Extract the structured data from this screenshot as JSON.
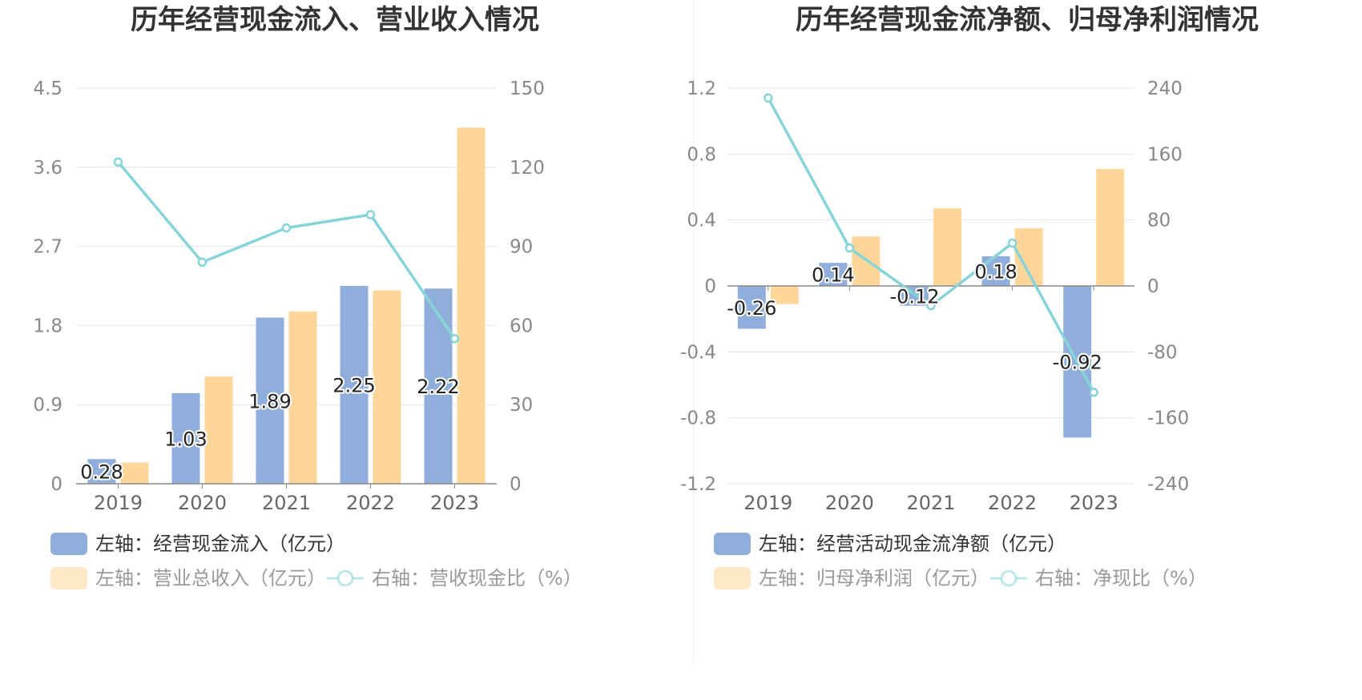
{
  "colors": {
    "bar_primary": "#8faedb",
    "bar_secondary": "#ffd699",
    "line": "#86d4d8",
    "grid": "#dde3f0",
    "axis": "#888888",
    "legend_active": "#333333",
    "legend_inactive": "#999999"
  },
  "chart_data": [
    {
      "type": "bar",
      "title": "历年经营现金流入、营业收入情况",
      "categories": [
        "2019",
        "2020",
        "2021",
        "2022",
        "2023"
      ],
      "y_left": {
        "ticks": [
          "0",
          "0.9",
          "1.8",
          "2.7",
          "3.6",
          "4.5"
        ],
        "range": [
          0,
          4.5
        ]
      },
      "y_right": {
        "ticks": [
          "0",
          "30",
          "60",
          "90",
          "120",
          "150"
        ],
        "range": [
          0,
          150
        ]
      },
      "series": [
        {
          "name": "左轴：经营现金流入（亿元）",
          "axis": "left",
          "kind": "bar",
          "values": [
            0.28,
            1.03,
            1.89,
            2.25,
            2.22
          ],
          "labels": [
            "0.28",
            "1.03",
            "1.89",
            "2.25",
            "2.22"
          ]
        },
        {
          "name": "左轴：营业总收入（亿元）",
          "axis": "left",
          "kind": "bar",
          "values": [
            0.24,
            1.22,
            1.96,
            2.2,
            4.05
          ]
        },
        {
          "name": "右轴：营收现金比（%）",
          "axis": "right",
          "kind": "line",
          "values": [
            122,
            84,
            97,
            102,
            55
          ]
        }
      ],
      "legend_placement": "bottom",
      "grid": true
    },
    {
      "type": "bar",
      "title": "历年经营现金流净额、归母净利润情况",
      "categories": [
        "2019",
        "2020",
        "2021",
        "2022",
        "2023"
      ],
      "y_left": {
        "ticks": [
          "-1.2",
          "-0.8",
          "-0.4",
          "0",
          "0.4",
          "0.8",
          "1.2"
        ],
        "range": [
          -1.2,
          1.2
        ]
      },
      "y_right": {
        "ticks": [
          "-240",
          "-160",
          "-80",
          "0",
          "80",
          "160",
          "240"
        ],
        "range": [
          -240,
          240
        ]
      },
      "series": [
        {
          "name": "左轴：经营活动现金流净额（亿元）",
          "axis": "left",
          "kind": "bar",
          "values": [
            -0.26,
            0.14,
            -0.12,
            0.18,
            -0.92
          ],
          "labels": [
            "-0.26",
            "0.14",
            "-0.12",
            "0.18",
            "-0.92"
          ]
        },
        {
          "name": "左轴：归母净利润（亿元）",
          "axis": "left",
          "kind": "bar",
          "values": [
            -0.11,
            0.3,
            0.47,
            0.35,
            0.71
          ]
        },
        {
          "name": "右轴：净现比（%）",
          "axis": "right",
          "kind": "line",
          "values": [
            228,
            46,
            -24,
            52,
            -129
          ]
        }
      ],
      "legend_placement": "bottom",
      "grid": true
    }
  ]
}
